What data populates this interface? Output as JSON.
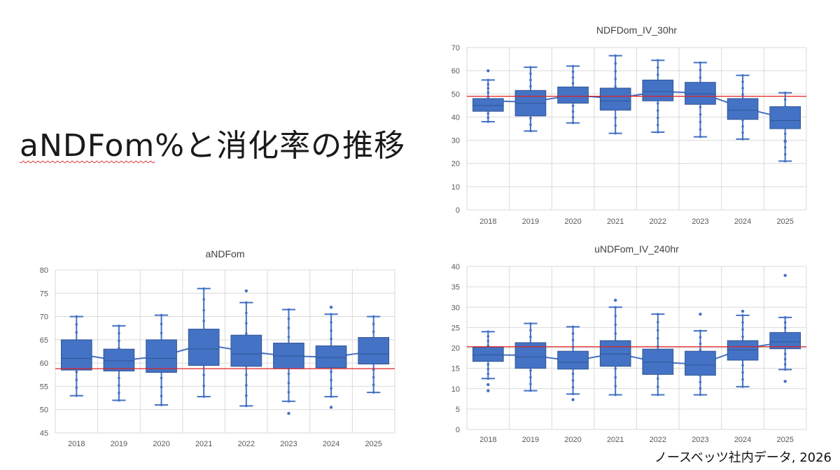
{
  "slide": {
    "title_main": "aNDFom",
    "title_rest": "%と消化率の推移",
    "footer": "ノースベッツ社内データ, 2026"
  },
  "colors": {
    "box": "#4472C4",
    "reference_line": "#E02020",
    "grid": "#D9D9D9",
    "axis_text": "#595959"
  },
  "chart_data": [
    {
      "id": "ndfdom",
      "type": "box",
      "title": "NDFDom_IV_30hr",
      "categories": [
        "2018",
        "2019",
        "2020",
        "2021",
        "2022",
        "2023",
        "2024",
        "2025"
      ],
      "ylim": [
        0,
        70
      ],
      "yticks": [
        0,
        10,
        20,
        30,
        40,
        50,
        60,
        70
      ],
      "grid": true,
      "reference_line": 49,
      "boxes": [
        {
          "min": 38,
          "q1": 42.5,
          "median": 45,
          "q3": 48,
          "max": 56,
          "mean": 47,
          "outliers": [
            60
          ]
        },
        {
          "min": 34,
          "q1": 40.5,
          "median": 46,
          "q3": 51.5,
          "max": 61.5,
          "mean": 46.5,
          "outliers": []
        },
        {
          "min": 37.5,
          "q1": 46,
          "median": 49,
          "q3": 53,
          "max": 62,
          "mean": 49.5,
          "outliers": []
        },
        {
          "min": 33,
          "q1": 43,
          "median": 47,
          "q3": 52.5,
          "max": 66.5,
          "mean": 48,
          "outliers": []
        },
        {
          "min": 33.5,
          "q1": 47,
          "median": 51,
          "q3": 56,
          "max": 64.5,
          "mean": 51,
          "outliers": []
        },
        {
          "min": 31.5,
          "q1": 45.5,
          "median": 50,
          "q3": 55,
          "max": 63.5,
          "mean": 50.5,
          "outliers": []
        },
        {
          "min": 30.5,
          "q1": 39,
          "median": 43,
          "q3": 48,
          "max": 58,
          "mean": 44,
          "outliers": []
        },
        {
          "min": 21,
          "q1": 35,
          "median": 38.5,
          "q3": 44.5,
          "max": 50.5,
          "mean": 39.5,
          "outliers": [
            29.5
          ]
        }
      ]
    },
    {
      "id": "andfom",
      "type": "box",
      "title": "aNDFom",
      "categories": [
        "2018",
        "2019",
        "2020",
        "2021",
        "2022",
        "2023",
        "2024",
        "2025"
      ],
      "ylim": [
        45,
        80
      ],
      "yticks": [
        45,
        50,
        55,
        60,
        65,
        70,
        75,
        80
      ],
      "grid": true,
      "reference_line": 58.8,
      "boxes": [
        {
          "min": 53,
          "q1": 58.5,
          "median": 61,
          "q3": 65,
          "max": 70,
          "mean": 62,
          "outliers": []
        },
        {
          "min": 52,
          "q1": 58.3,
          "median": 60.5,
          "q3": 63,
          "max": 68,
          "mean": 60.5,
          "outliers": []
        },
        {
          "min": 51,
          "q1": 58,
          "median": 61,
          "q3": 65,
          "max": 70.3,
          "mean": 61.5,
          "outliers": []
        },
        {
          "min": 52.8,
          "q1": 59.5,
          "median": 63,
          "q3": 67.3,
          "max": 76,
          "mean": 64,
          "outliers": []
        },
        {
          "min": 50.8,
          "q1": 59.3,
          "median": 62,
          "q3": 66,
          "max": 73,
          "mean": 62.5,
          "outliers": [
            75.5
          ]
        },
        {
          "min": 51.8,
          "q1": 58.8,
          "median": 61.5,
          "q3": 64.3,
          "max": 71.5,
          "mean": 61.5,
          "outliers": [
            49.2
          ]
        },
        {
          "min": 52.8,
          "q1": 59,
          "median": 61.2,
          "q3": 63.7,
          "max": 70.5,
          "mean": 61.3,
          "outliers": [
            72,
            50.5
          ]
        },
        {
          "min": 53.7,
          "q1": 59.8,
          "median": 62,
          "q3": 65.5,
          "max": 70,
          "mean": 62.5,
          "outliers": []
        }
      ]
    },
    {
      "id": "undfom",
      "type": "box",
      "title": "uNDFom_IV_240hr",
      "categories": [
        "2018",
        "2019",
        "2020",
        "2021",
        "2022",
        "2023",
        "2024",
        "2025"
      ],
      "ylim": [
        0,
        40
      ],
      "yticks": [
        0,
        5,
        10,
        15,
        20,
        25,
        30,
        35,
        40
      ],
      "grid": true,
      "reference_line": 20.3,
      "boxes": [
        {
          "min": 12.5,
          "q1": 16.7,
          "median": 18.3,
          "q3": 20.2,
          "max": 24,
          "mean": 18.3,
          "outliers": [
            11,
            9.5
          ]
        },
        {
          "min": 9.5,
          "q1": 15,
          "median": 17.8,
          "q3": 21.3,
          "max": 26,
          "mean": 18.2,
          "outliers": []
        },
        {
          "min": 8.7,
          "q1": 14.8,
          "median": 16.5,
          "q3": 19.2,
          "max": 25.2,
          "mean": 16.8,
          "outliers": [
            7.3
          ]
        },
        {
          "min": 8.5,
          "q1": 15.5,
          "median": 18.5,
          "q3": 21.8,
          "max": 30,
          "mean": 18.7,
          "outliers": [
            31.7
          ]
        },
        {
          "min": 8.5,
          "q1": 13.5,
          "median": 16.5,
          "q3": 19.7,
          "max": 28.3,
          "mean": 16.5,
          "outliers": []
        },
        {
          "min": 8.5,
          "q1": 13.3,
          "median": 15.8,
          "q3": 19.2,
          "max": 24.2,
          "mean": 16,
          "outliers": [
            28.3
          ]
        },
        {
          "min": 10.5,
          "q1": 17,
          "median": 19.5,
          "q3": 21.8,
          "max": 28,
          "mean": 19.8,
          "outliers": [
            29
          ]
        },
        {
          "min": 14.7,
          "q1": 19.8,
          "median": 21.5,
          "q3": 23.8,
          "max": 27.5,
          "mean": 21.5,
          "outliers": [
            37.8,
            11.8
          ]
        }
      ]
    }
  ]
}
